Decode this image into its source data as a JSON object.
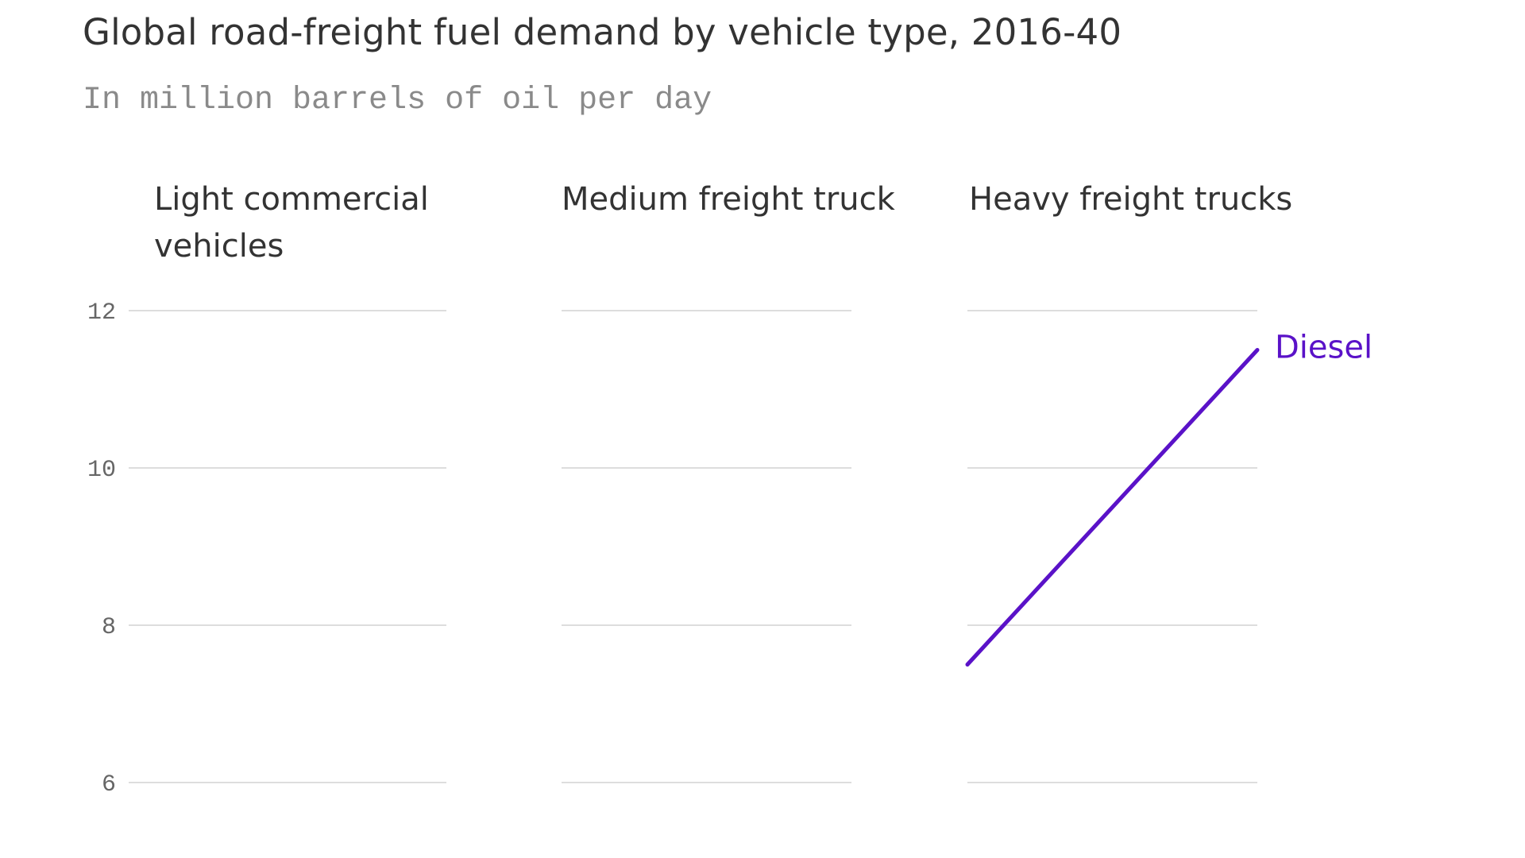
{
  "title": "Global road-freight fuel demand by vehicle type, 2016-40",
  "subtitle": "In million barrels of oil per day",
  "colors": {
    "gridline": "#dddddd",
    "diesel": "#5a12c8",
    "text": "#333333",
    "muted": "#8a8a8a"
  },
  "chart_data": [
    {
      "type": "line",
      "title": "Light commercial vehicles",
      "x": [
        2016,
        2040
      ],
      "xlim": [
        2016,
        2040
      ],
      "ylim": [
        6,
        12
      ],
      "yticks": [
        "12",
        "10",
        "8",
        "6"
      ],
      "grid": true,
      "series": []
    },
    {
      "type": "line",
      "title": "Medium freight truck",
      "x": [
        2016,
        2040
      ],
      "xlim": [
        2016,
        2040
      ],
      "ylim": [
        6,
        12
      ],
      "grid": true,
      "series": []
    },
    {
      "type": "line",
      "title": "Heavy freight trucks",
      "x": [
        2016,
        2040
      ],
      "xlim": [
        2016,
        2040
      ],
      "ylim": [
        6,
        12
      ],
      "grid": true,
      "series": [
        {
          "name": "Diesel",
          "color": "#5a12c8",
          "values": [
            7.5,
            11.5
          ]
        }
      ]
    }
  ]
}
